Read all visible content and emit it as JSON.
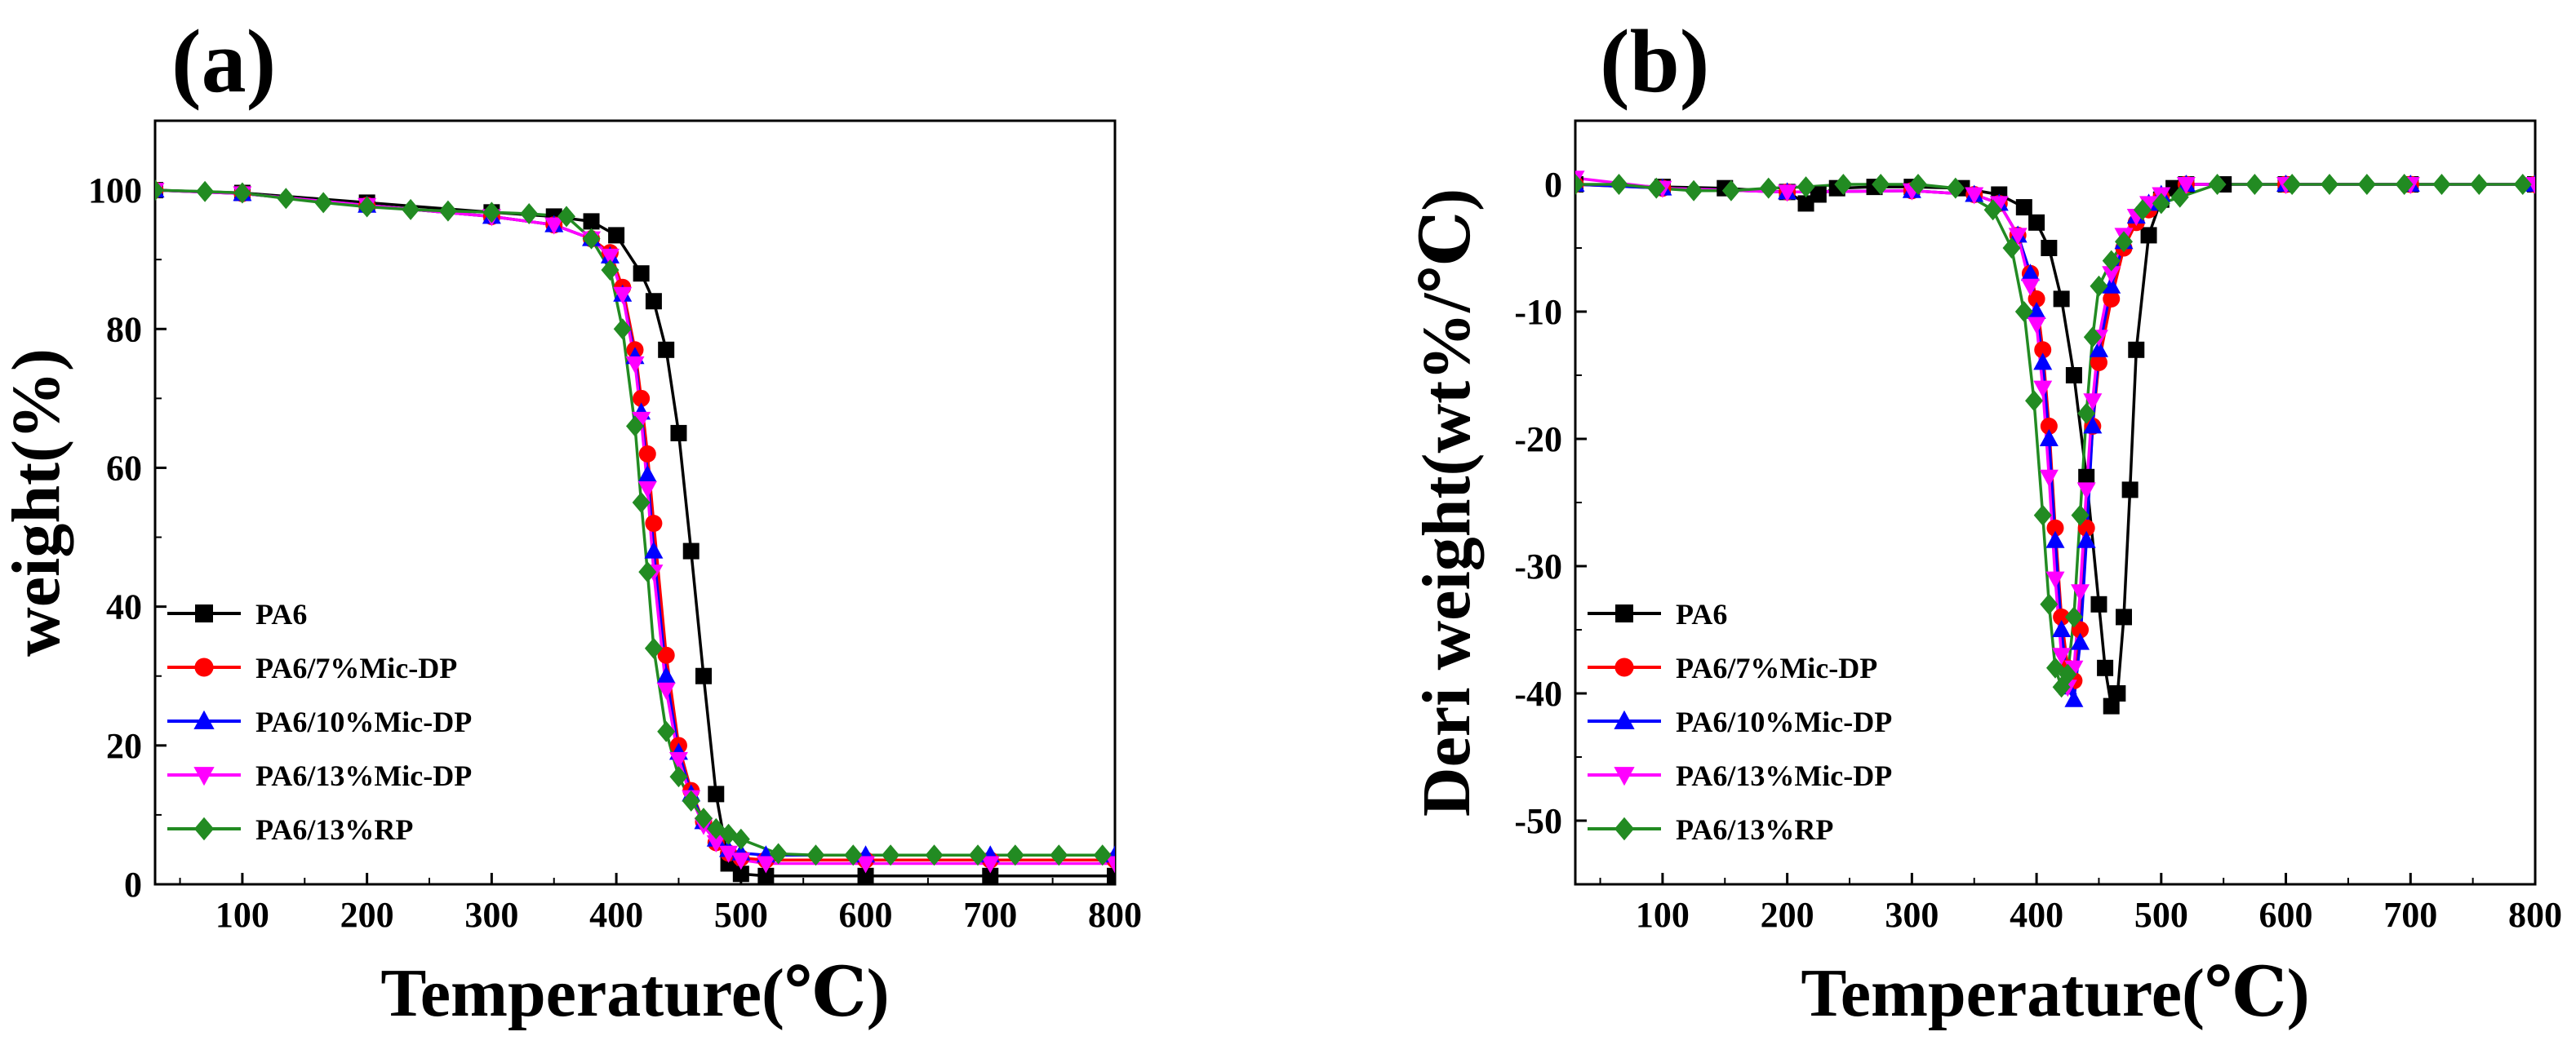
{
  "chart_data": [
    {
      "type": "line",
      "panel_label": "(a)",
      "xlabel": "Temperature(℃)",
      "ylabel": "weight(%)",
      "xlim": [
        30,
        800
      ],
      "ylim": [
        0,
        110
      ],
      "xticks": [
        100,
        200,
        300,
        400,
        500,
        600,
        700,
        800
      ],
      "yticks": [
        0,
        20,
        40,
        60,
        80,
        100
      ],
      "grid": false,
      "legend_position": "bottom-left",
      "series": [
        {
          "name": "PA6",
          "color": "#000000",
          "marker": "square",
          "x": [
            30,
            100,
            200,
            300,
            350,
            380,
            400,
            420,
            430,
            440,
            450,
            460,
            470,
            480,
            490,
            500,
            520,
            600,
            700,
            800
          ],
          "y": [
            100,
            99.6,
            98.2,
            96.8,
            96.2,
            95.5,
            93.5,
            88,
            84,
            77,
            65,
            48,
            30,
            13,
            3,
            1.5,
            1.2,
            1.2,
            1.2,
            1.2
          ]
        },
        {
          "name": "PA6/7%Mic-DP",
          "color": "#ff0000",
          "marker": "circle",
          "x": [
            30,
            100,
            200,
            300,
            350,
            380,
            395,
            405,
            415,
            420,
            425,
            430,
            440,
            450,
            460,
            470,
            480,
            490,
            500,
            520,
            600,
            700,
            800
          ],
          "y": [
            100,
            99.5,
            97.8,
            96.2,
            95,
            93,
            91,
            86,
            77,
            70,
            62,
            52,
            33,
            20,
            13.5,
            9,
            6,
            4.5,
            3.8,
            3.5,
            3.5,
            3.5,
            3.5
          ]
        },
        {
          "name": "PA6/10%Mic-DP",
          "color": "#0000ff",
          "marker": "triangle-up",
          "x": [
            30,
            100,
            200,
            300,
            350,
            380,
            395,
            405,
            415,
            420,
            425,
            430,
            440,
            450,
            460,
            470,
            480,
            490,
            500,
            520,
            600,
            700,
            800
          ],
          "y": [
            100,
            99.5,
            97.8,
            96.2,
            95,
            93,
            90.5,
            85,
            76,
            68,
            59,
            48,
            30,
            19,
            13,
            9,
            6.5,
            5,
            4.5,
            4.2,
            4.2,
            4.2,
            4.2
          ]
        },
        {
          "name": "PA6/13%Mic-DP",
          "color": "#ff00ff",
          "marker": "triangle-down",
          "x": [
            30,
            100,
            200,
            300,
            350,
            380,
            395,
            405,
            415,
            420,
            425,
            430,
            440,
            450,
            460,
            470,
            480,
            490,
            500,
            520,
            600,
            700,
            800
          ],
          "y": [
            100,
            99.5,
            97.8,
            96.2,
            95,
            93,
            90.5,
            85,
            75,
            67,
            57,
            45,
            28,
            18,
            12.5,
            8.5,
            6,
            4.5,
            3.5,
            3,
            3,
            3,
            3
          ]
        },
        {
          "name": "PA6/13%RP",
          "color": "#228b22",
          "marker": "diamond",
          "x": [
            30,
            70,
            100,
            135,
            165,
            200,
            235,
            265,
            300,
            330,
            360,
            380,
            395,
            405,
            415,
            420,
            425,
            430,
            440,
            450,
            460,
            470,
            480,
            490,
            500,
            530,
            560,
            590,
            620,
            655,
            690,
            720,
            755,
            790
          ],
          "y": [
            100,
            99.8,
            99.6,
            98.8,
            98.2,
            97.6,
            97.2,
            97.0,
            96.8,
            96.6,
            96.2,
            93,
            88.5,
            80,
            66,
            55,
            45,
            34,
            22,
            15.5,
            12,
            9.5,
            8,
            7.2,
            6.5,
            4.4,
            4.2,
            4.2,
            4.2,
            4.2,
            4.2,
            4.2,
            4.2,
            4.2
          ]
        }
      ]
    },
    {
      "type": "line",
      "panel_label": "(b)",
      "xlabel": "Temperature(℃)",
      "ylabel": "Deri weight(wt%/℃)",
      "xlim": [
        30,
        800
      ],
      "ylim": [
        -55,
        5
      ],
      "xticks": [
        100,
        200,
        300,
        400,
        500,
        600,
        700,
        800
      ],
      "yticks": [
        0,
        -10,
        -20,
        -30,
        -40,
        -50
      ],
      "grid": false,
      "legend_position": "bottom-left",
      "series": [
        {
          "name": "PA6",
          "color": "#000000",
          "marker": "square",
          "x": [
            30,
            100,
            150,
            200,
            215,
            225,
            240,
            270,
            300,
            340,
            370,
            390,
            400,
            410,
            420,
            430,
            440,
            450,
            455,
            460,
            465,
            470,
            475,
            480,
            490,
            500,
            510,
            520,
            550,
            600,
            700,
            800
          ],
          "y": [
            0,
            -0.2,
            -0.3,
            -0.6,
            -1.5,
            -0.8,
            -0.3,
            -0.2,
            -0.2,
            -0.3,
            -0.8,
            -1.8,
            -3,
            -5,
            -9,
            -15,
            -23,
            -33,
            -38,
            -41,
            -40,
            -34,
            -24,
            -13,
            -4,
            -1.2,
            -0.3,
            0,
            0,
            0,
            0,
            0
          ]
        },
        {
          "name": "PA6/7%Mic-DP",
          "color": "#ff0000",
          "marker": "circle",
          "x": [
            30,
            100,
            200,
            300,
            350,
            370,
            385,
            395,
            400,
            405,
            410,
            415,
            420,
            425,
            430,
            435,
            440,
            445,
            450,
            460,
            470,
            480,
            490,
            500,
            520,
            600,
            700,
            800
          ],
          "y": [
            0,
            -0.3,
            -0.6,
            -0.5,
            -0.8,
            -1.5,
            -4,
            -7,
            -9,
            -13,
            -19,
            -27,
            -34,
            -38,
            -39,
            -35,
            -27,
            -19,
            -14,
            -9,
            -5,
            -3,
            -2,
            -1,
            0,
            0,
            0,
            0
          ]
        },
        {
          "name": "PA6/10%Mic-DP",
          "color": "#0000ff",
          "marker": "triangle-up",
          "x": [
            30,
            100,
            200,
            300,
            350,
            370,
            385,
            395,
            400,
            405,
            410,
            415,
            420,
            425,
            430,
            435,
            440,
            445,
            450,
            460,
            470,
            480,
            490,
            500,
            520,
            600,
            700,
            800
          ],
          "y": [
            0,
            -0.3,
            -0.6,
            -0.5,
            -0.8,
            -1.5,
            -4,
            -7,
            -10,
            -14,
            -20,
            -28,
            -35,
            -39.5,
            -40.5,
            -36,
            -28,
            -19,
            -13,
            -8,
            -4.5,
            -2.5,
            -1.5,
            -0.8,
            0,
            0,
            0,
            0
          ]
        },
        {
          "name": "PA6/13%Mic-DP",
          "color": "#ff00ff",
          "marker": "triangle-down",
          "x": [
            30,
            100,
            200,
            300,
            350,
            370,
            385,
            395,
            400,
            405,
            410,
            415,
            420,
            425,
            430,
            435,
            440,
            445,
            450,
            460,
            470,
            480,
            490,
            500,
            520,
            600,
            700,
            800
          ],
          "y": [
            0.5,
            -0.3,
            -0.6,
            -0.5,
            -0.8,
            -1.5,
            -4,
            -8,
            -11,
            -16,
            -23,
            -31,
            -37,
            -39.5,
            -38,
            -32,
            -24,
            -17,
            -12,
            -7,
            -4,
            -2.5,
            -1.5,
            -0.8,
            0,
            0,
            0,
            0
          ]
        },
        {
          "name": "PA6/13%RP",
          "color": "#228b22",
          "marker": "diamond",
          "x": [
            30,
            65,
            95,
            125,
            155,
            185,
            215,
            245,
            275,
            305,
            335,
            365,
            380,
            390,
            398,
            405,
            410,
            415,
            420,
            425,
            430,
            435,
            440,
            445,
            450,
            460,
            470,
            485,
            500,
            515,
            545,
            575,
            605,
            635,
            665,
            695,
            725,
            755,
            790
          ],
          "y": [
            0,
            0,
            -0.3,
            -0.5,
            -0.5,
            -0.3,
            -0.2,
            0,
            0,
            0,
            -0.3,
            -2,
            -5,
            -10,
            -17,
            -26,
            -33,
            -38,
            -39.5,
            -38.5,
            -34,
            -26,
            -18,
            -12,
            -8,
            -6,
            -4.5,
            -2,
            -1.5,
            -1,
            0,
            0,
            0,
            0,
            0,
            0,
            0,
            0,
            0
          ]
        }
      ]
    }
  ]
}
